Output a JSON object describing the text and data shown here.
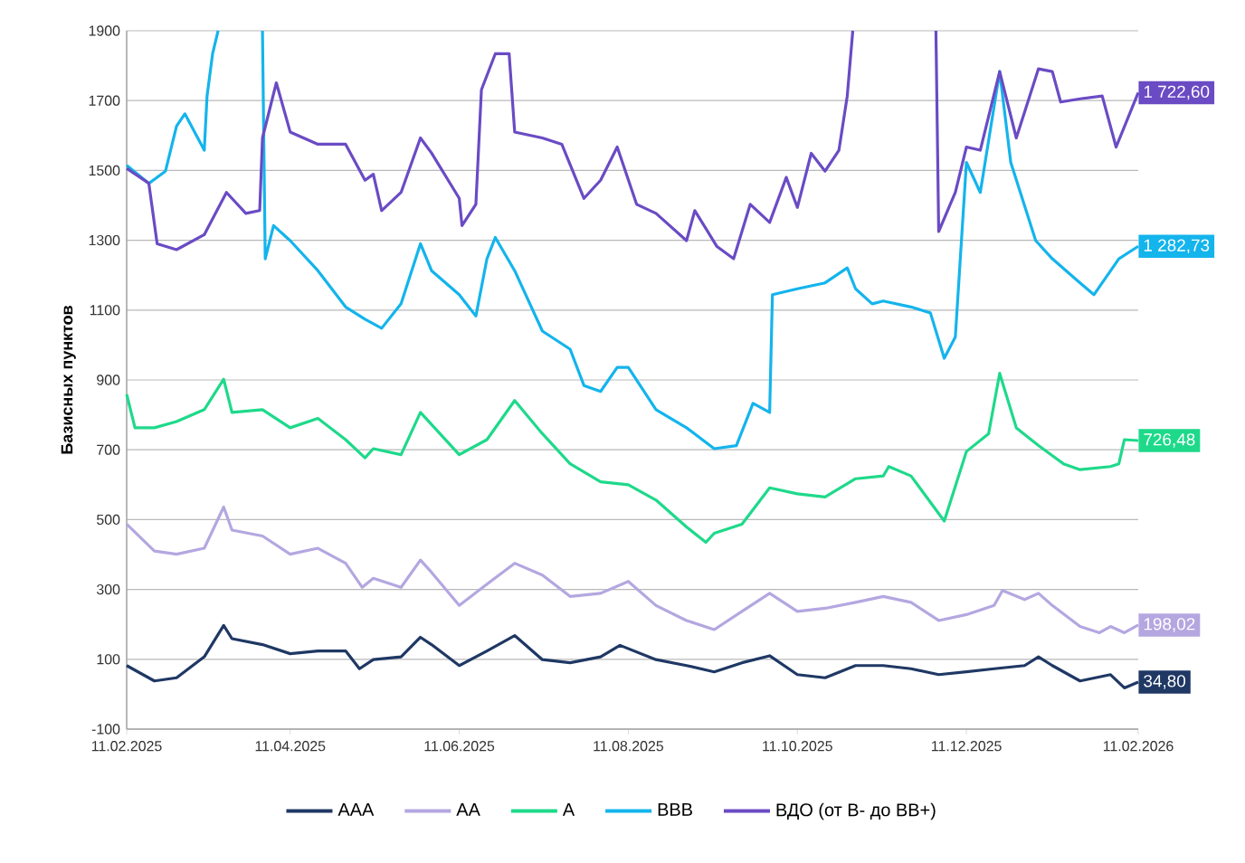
{
  "chart_data": {
    "type": "line",
    "ylabel": "Базисных пунктов",
    "xlim": [
      "2025-02-11",
      "2026-02-11"
    ],
    "xticks": [
      {
        "value": "2025-02-11",
        "label": "11.02.2025"
      },
      {
        "value": "2025-04-11",
        "label": "11.04.2025"
      },
      {
        "value": "2025-06-11",
        "label": "11.06.2025"
      },
      {
        "value": "2025-08-11",
        "label": "11.08.2025"
      },
      {
        "value": "2025-10-11",
        "label": "11.10.2025"
      },
      {
        "value": "2025-12-11",
        "label": "11.12.2025"
      },
      {
        "value": "2026-02-11",
        "label": "11.02.2026"
      }
    ],
    "ylim": [
      -100,
      1900
    ],
    "yticks": [
      -100,
      100,
      300,
      500,
      700,
      900,
      1100,
      1300,
      1500,
      1700,
      1900
    ],
    "grid": "y",
    "legend": "bottom",
    "line_style": "solid",
    "series": [
      {
        "name": "AAA",
        "color": "#1f3864",
        "x": [
          "2025-02-11",
          "2025-02-21",
          "2025-03-01",
          "2025-03-11",
          "2025-03-18",
          "2025-03-21",
          "2025-04-01",
          "2025-04-11",
          "2025-04-21",
          "2025-05-01",
          "2025-05-06",
          "2025-05-11",
          "2025-05-21",
          "2025-05-28",
          "2025-06-01",
          "2025-06-11",
          "2025-06-21",
          "2025-07-01",
          "2025-07-11",
          "2025-07-21",
          "2025-08-01",
          "2025-08-08",
          "2025-08-21",
          "2025-09-01",
          "2025-09-11",
          "2025-09-21",
          "2025-10-01",
          "2025-10-11",
          "2025-10-21",
          "2025-11-01",
          "2025-11-11",
          "2025-11-21",
          "2025-12-01",
          "2025-12-11",
          "2025-12-21",
          "2026-01-01",
          "2026-01-06",
          "2026-01-11",
          "2026-01-21",
          "2026-02-01",
          "2026-02-06",
          "2026-02-11"
        ],
        "values": [
          82,
          38,
          47,
          107,
          197,
          159,
          142,
          116,
          124,
          124,
          73,
          99,
          107,
          163,
          142,
          82,
          124,
          168,
          99,
          90,
          107,
          140,
          99,
          82,
          64,
          90,
          110,
          56,
          47,
          82,
          82,
          73,
          56,
          64,
          73,
          82,
          107,
          82,
          38,
          56,
          18,
          34.8
        ]
      },
      {
        "name": "AA",
        "color": "#b4a7e0",
        "x": [
          "2025-02-11",
          "2025-02-21",
          "2025-03-01",
          "2025-03-11",
          "2025-03-18",
          "2025-03-21",
          "2025-04-01",
          "2025-04-11",
          "2025-04-21",
          "2025-05-01",
          "2025-05-07",
          "2025-05-11",
          "2025-05-21",
          "2025-05-28",
          "2025-06-01",
          "2025-06-11",
          "2025-06-21",
          "2025-07-01",
          "2025-07-11",
          "2025-07-21",
          "2025-08-01",
          "2025-08-11",
          "2025-08-21",
          "2025-09-01",
          "2025-09-11",
          "2025-09-21",
          "2025-10-01",
          "2025-10-11",
          "2025-10-21",
          "2025-11-01",
          "2025-11-11",
          "2025-11-21",
          "2025-12-01",
          "2025-12-11",
          "2025-12-21",
          "2025-12-24",
          "2026-01-01",
          "2026-01-06",
          "2026-01-11",
          "2026-01-21",
          "2026-01-28",
          "2026-02-01",
          "2026-02-06",
          "2026-02-11"
        ],
        "values": [
          487,
          410,
          401,
          418,
          536,
          470,
          453,
          401,
          418,
          375,
          306,
          332,
          306,
          384,
          349,
          254,
          315,
          375,
          341,
          280,
          289,
          323,
          254,
          211,
          185,
          237,
          289,
          237,
          246,
          263,
          280,
          263,
          211,
          228,
          254,
          297,
          271,
          289,
          254,
          194,
          176,
          194,
          176,
          198.02
        ]
      },
      {
        "name": "A",
        "color": "#1ed98a",
        "x": [
          "2025-02-11",
          "2025-02-14",
          "2025-02-21",
          "2025-03-01",
          "2025-03-11",
          "2025-03-18",
          "2025-03-21",
          "2025-04-01",
          "2025-04-11",
          "2025-04-21",
          "2025-05-01",
          "2025-05-08",
          "2025-05-11",
          "2025-05-21",
          "2025-05-28",
          "2025-06-11",
          "2025-06-21",
          "2025-07-01",
          "2025-07-11",
          "2025-07-21",
          "2025-08-01",
          "2025-08-11",
          "2025-08-21",
          "2025-09-01",
          "2025-09-08",
          "2025-09-11",
          "2025-09-21",
          "2025-10-01",
          "2025-10-11",
          "2025-10-21",
          "2025-11-01",
          "2025-11-11",
          "2025-11-13",
          "2025-11-21",
          "2025-12-03",
          "2025-12-11",
          "2025-12-19",
          "2025-12-23",
          "2025-12-29",
          "2026-01-06",
          "2026-01-15",
          "2026-01-21",
          "2026-02-01",
          "2026-02-04",
          "2026-02-06",
          "2026-02-11"
        ],
        "values": [
          859,
          763,
          763,
          781,
          815,
          902,
          807,
          815,
          763,
          790,
          729,
          677,
          703,
          686,
          807,
          686,
          729,
          841,
          746,
          660,
          608,
          600,
          556,
          479,
          435,
          461,
          487,
          591,
          574,
          565,
          617,
          625,
          652,
          625,
          496,
          695,
          746,
          919,
          763,
          712,
          660,
          643,
          652,
          660,
          729,
          726.48
        ]
      },
      {
        "name": "BBB",
        "color": "#14b4ec",
        "x": [
          "2025-02-11",
          "2025-02-19",
          "2025-02-25",
          "2025-03-01",
          "2025-03-04",
          "2025-03-11",
          "2025-03-12",
          "2025-03-14",
          "2025-03-16",
          "2025-03-25",
          "2025-04-01",
          "2025-04-02",
          "2025-04-05",
          "2025-04-11",
          "2025-04-21",
          "2025-05-01",
          "2025-05-08",
          "2025-05-14",
          "2025-05-21",
          "2025-05-28",
          "2025-06-01",
          "2025-06-11",
          "2025-06-17",
          "2025-06-21",
          "2025-06-24",
          "2025-07-01",
          "2025-07-11",
          "2025-07-21",
          "2025-07-26",
          "2025-08-01",
          "2025-08-07",
          "2025-08-11",
          "2025-08-21",
          "2025-09-01",
          "2025-09-11",
          "2025-09-19",
          "2025-09-25",
          "2025-10-01",
          "2025-10-02",
          "2025-10-11",
          "2025-10-21",
          "2025-10-29",
          "2025-11-01",
          "2025-11-07",
          "2025-11-11",
          "2025-11-21",
          "2025-11-28",
          "2025-12-03",
          "2025-12-07",
          "2025-12-11",
          "2025-12-16",
          "2025-12-23",
          "2025-12-27",
          "2026-01-05",
          "2026-01-11",
          "2026-01-21",
          "2026-01-26",
          "2026-02-04",
          "2026-02-11"
        ],
        "values": [
          1515,
          1463,
          1498,
          1627,
          1662,
          1558,
          1713,
          1834,
          1900,
          null,
          1900,
          1247,
          1342,
          1299,
          1213,
          1109,
          1074,
          1048,
          1118,
          1290,
          1213,
          1144,
          1083,
          1247,
          1308,
          1213,
          1040,
          988,
          884,
          867,
          936,
          936,
          815,
          763,
          703,
          712,
          833,
          807,
          1144,
          1161,
          1178,
          1221,
          1161,
          1118,
          1126,
          1109,
          1092,
          962,
          1023,
          1523,
          1437,
          1783,
          1523,
          1299,
          1247,
          1178,
          1144,
          1247,
          1282.73
        ]
      },
      {
        "name": "ВДО (от B- до BB+)",
        "color": "#6a4bc4",
        "x": [
          "2025-02-11",
          "2025-02-19",
          "2025-02-22",
          "2025-03-01",
          "2025-03-11",
          "2025-03-19",
          "2025-03-26",
          "2025-03-31",
          "2025-04-01",
          "2025-04-06",
          "2025-04-11",
          "2025-04-21",
          "2025-05-01",
          "2025-05-08",
          "2025-05-11",
          "2025-05-14",
          "2025-05-21",
          "2025-05-28",
          "2025-06-01",
          "2025-06-11",
          "2025-06-12",
          "2025-06-17",
          "2025-06-19",
          "2025-06-24",
          "2025-06-29",
          "2025-07-01",
          "2025-07-11",
          "2025-07-18",
          "2025-07-26",
          "2025-08-01",
          "2025-08-07",
          "2025-08-14",
          "2025-08-21",
          "2025-09-01",
          "2025-09-04",
          "2025-09-12",
          "2025-09-18",
          "2025-09-24",
          "2025-10-01",
          "2025-10-07",
          "2025-10-11",
          "2025-10-16",
          "2025-10-21",
          "2025-10-26",
          "2025-10-29",
          "2025-10-31",
          "2025-11-15",
          "2025-11-30",
          "2025-12-01",
          "2025-12-07",
          "2025-12-11",
          "2025-12-16",
          "2025-12-23",
          "2025-12-29",
          "2026-01-06",
          "2026-01-11",
          "2026-01-14",
          "2026-01-21",
          "2026-01-29",
          "2026-02-03",
          "2026-02-11"
        ],
        "values": [
          1506,
          1463,
          1290,
          1273,
          1316,
          1437,
          1377,
          1385,
          1593,
          1751,
          1610,
          1575,
          1575,
          1472,
          1489,
          1385,
          1437,
          1593,
          1550,
          1420,
          1342,
          1403,
          1731,
          1834,
          1834,
          1610,
          1593,
          1575,
          1420,
          1472,
          1567,
          1403,
          1377,
          1299,
          1385,
          1282,
          1247,
          1403,
          1351,
          1480,
          1394,
          1549,
          1498,
          1558,
          1713,
          1900,
          null,
          1900,
          1325,
          1437,
          1567,
          1558,
          1783,
          1593,
          1791,
          1783,
          1696,
          1705,
          1713,
          1567,
          1722.6
        ]
      }
    ],
    "annotations": [
      {
        "text": "1 722,60",
        "x": "2026-02-11",
        "y": 1722.6
      },
      {
        "text": "1 282,73",
        "x": "2026-02-11",
        "y": 1282.73
      },
      {
        "text": "726,48",
        "x": "2026-02-11",
        "y": 726.48
      },
      {
        "text": "198,02",
        "x": "2026-02-11",
        "y": 198.02
      },
      {
        "text": "34,80",
        "x": "2026-02-11",
        "y": 34.8
      }
    ]
  }
}
